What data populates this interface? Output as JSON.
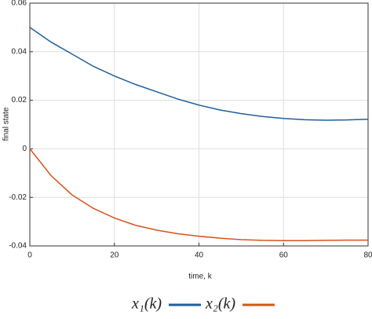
{
  "chart_data": {
    "type": "line",
    "xlabel": "time, k",
    "ylabel": "final state",
    "x": [
      0,
      5,
      10,
      15,
      20,
      25,
      30,
      35,
      40,
      45,
      50,
      55,
      60,
      65,
      70,
      75,
      80
    ],
    "series": [
      {
        "name": "x₁(k)",
        "color": "#1f5f9e",
        "values": [
          0.05,
          0.044,
          0.039,
          0.034,
          0.03,
          0.0265,
          0.0235,
          0.0205,
          0.018,
          0.016,
          0.0145,
          0.0133,
          0.0125,
          0.012,
          0.0118,
          0.0119,
          0.0122
        ]
      },
      {
        "name": "x₂(k)",
        "color": "#d95319",
        "values": [
          0,
          -0.011,
          -0.019,
          -0.0245,
          -0.0285,
          -0.0315,
          -0.0335,
          -0.035,
          -0.036,
          -0.0368,
          -0.0374,
          -0.0377,
          -0.0378,
          -0.0378,
          -0.0377,
          -0.0376,
          -0.0376
        ]
      }
    ],
    "xlim": [
      0,
      80
    ],
    "xticks": [
      0,
      20,
      40,
      60,
      80
    ],
    "ylim": [
      -0.04,
      0.06
    ],
    "yticks": [
      -0.04,
      -0.02,
      0,
      0.02,
      0.04,
      0.06
    ],
    "grid": true,
    "legend": "bottom"
  }
}
